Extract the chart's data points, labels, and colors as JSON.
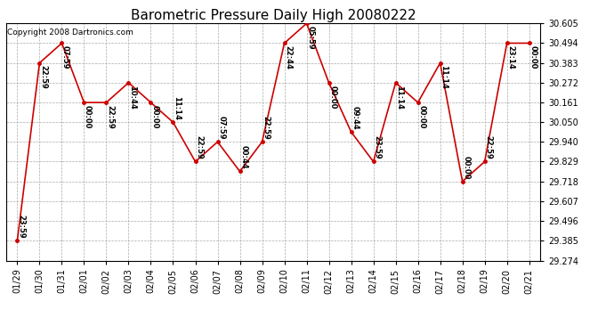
{
  "title": "Barometric Pressure Daily High 20080222",
  "copyright": "Copyright 2008 Dartronics.com",
  "x_labels": [
    "01/29",
    "01/30",
    "01/31",
    "02/01",
    "02/02",
    "02/03",
    "02/04",
    "02/05",
    "02/06",
    "02/07",
    "02/08",
    "02/09",
    "02/10",
    "02/11",
    "02/12",
    "02/13",
    "02/14",
    "02/15",
    "02/16",
    "02/17",
    "02/18",
    "02/19",
    "02/20",
    "02/21"
  ],
  "y_values": [
    29.385,
    30.383,
    30.494,
    30.161,
    30.161,
    30.272,
    30.161,
    30.05,
    29.829,
    29.94,
    29.774,
    29.94,
    30.494,
    30.605,
    30.272,
    29.996,
    29.829,
    30.272,
    30.161,
    30.383,
    29.718,
    29.829,
    30.494,
    30.494
  ],
  "point_labels": [
    "23:59",
    "22:59",
    "07:59",
    "00:00",
    "22:59",
    "10:44",
    "00:00",
    "11:14",
    "22:59",
    "07:59",
    "00:44",
    "22:59",
    "22:44",
    "05:59",
    "00:00",
    "09:44",
    "23:59",
    "11:14",
    "00:00",
    "11:14",
    "00:00",
    "22:59",
    "23:14",
    "00:00"
  ],
  "y_min": 29.274,
  "y_max": 30.605,
  "y_ticks": [
    29.274,
    29.385,
    29.496,
    29.607,
    29.718,
    29.829,
    29.94,
    30.05,
    30.161,
    30.272,
    30.383,
    30.494,
    30.605
  ],
  "line_color": "#cc0000",
  "marker_color": "#cc0000",
  "background_color": "#ffffff",
  "grid_color": "#aaaaaa",
  "title_fontsize": 11,
  "label_fontsize": 6,
  "tick_fontsize": 7,
  "copyright_fontsize": 6.5
}
